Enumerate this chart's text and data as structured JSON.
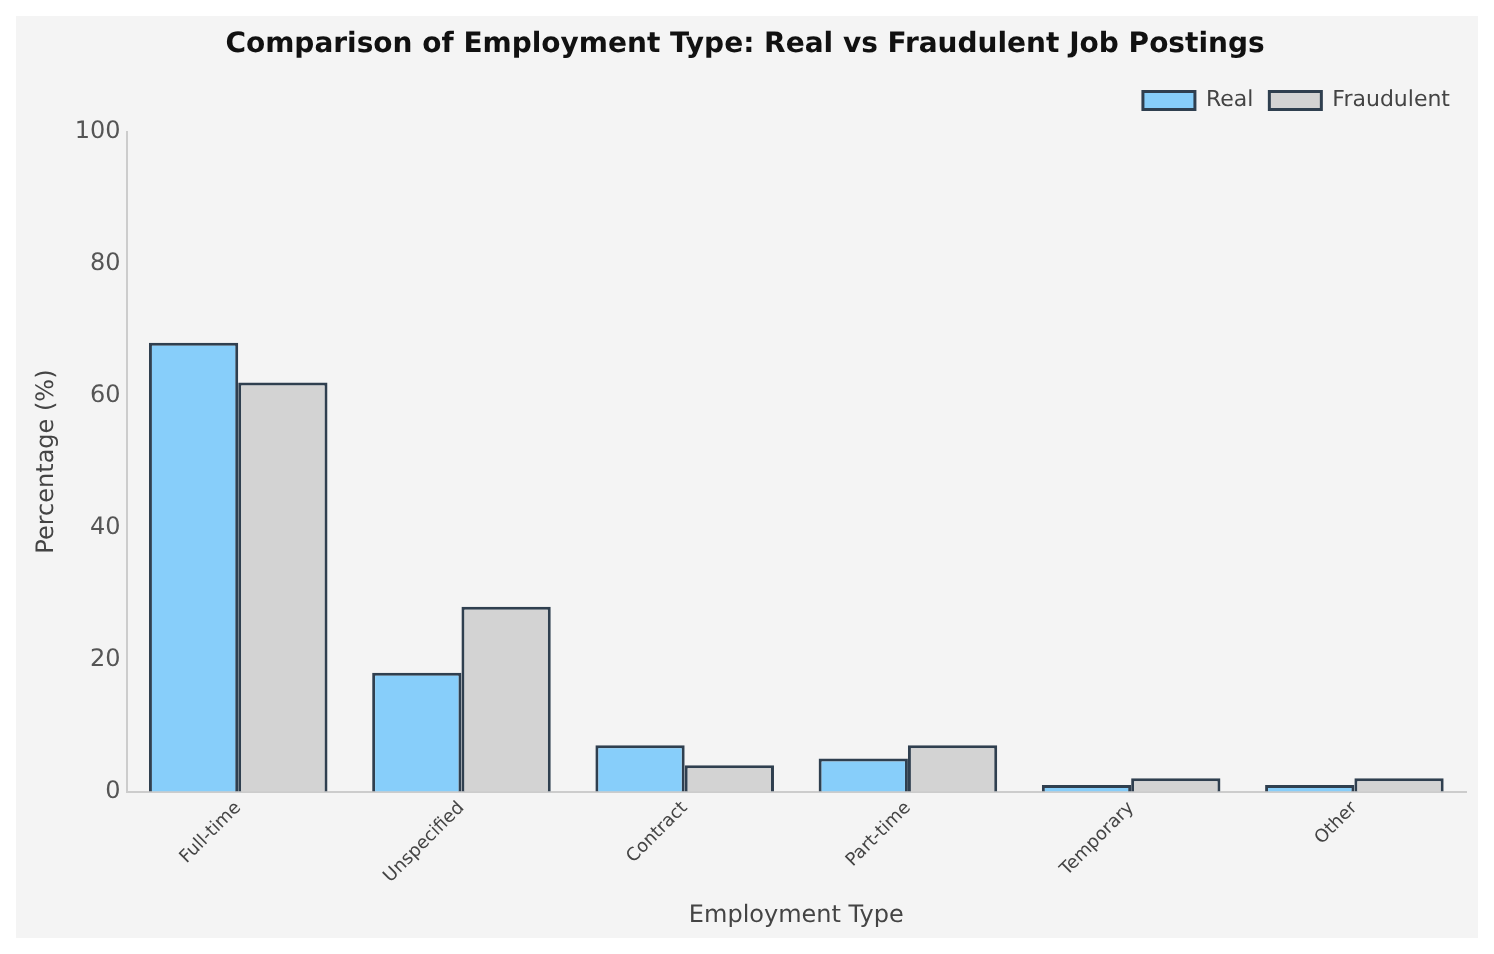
{
  "chart_data": {
    "type": "bar",
    "title": "Comparison of Employment Type: Real vs Fraudulent Job Postings",
    "xlabel": "Employment Type",
    "ylabel": "Percentage (%)",
    "categories": [
      "Full-time",
      "Unspecified",
      "Contract",
      "Part-time",
      "Temporary",
      "Other"
    ],
    "series": [
      {
        "name": "Real",
        "color": "#87cefa",
        "values": [
          68,
          18,
          7,
          5,
          1,
          1
        ]
      },
      {
        "name": "Fraudulent",
        "color": "#d3d3d3",
        "values": [
          62,
          28,
          4,
          7,
          2,
          2
        ]
      }
    ],
    "ylim": [
      0,
      100
    ],
    "yticks": [
      0,
      20,
      40,
      60,
      80,
      100
    ],
    "grid": false,
    "legend": "top right"
  }
}
